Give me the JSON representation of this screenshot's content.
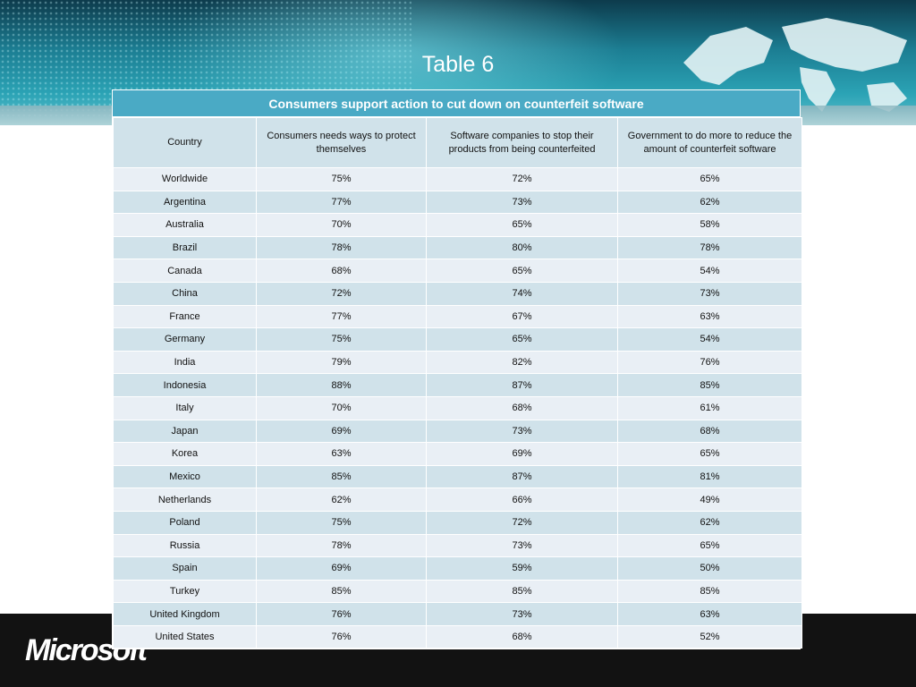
{
  "slide": {
    "title": "Table 6",
    "logo": "Microsoft"
  },
  "table": {
    "caption": "Consumers support action to cut down on counterfeit software",
    "headers": [
      "Country",
      "Consumers needs ways to protect themselves",
      "Software companies to stop their products from being counterfeited",
      "Government to do more to reduce the amount of counterfeit software"
    ],
    "rows": [
      [
        "Worldwide",
        "75%",
        "72%",
        "65%"
      ],
      [
        "Argentina",
        "77%",
        "73%",
        "62%"
      ],
      [
        "Australia",
        "70%",
        "65%",
        "58%"
      ],
      [
        "Brazil",
        "78%",
        "80%",
        "78%"
      ],
      [
        "Canada",
        "68%",
        "65%",
        "54%"
      ],
      [
        "China",
        "72%",
        "74%",
        "73%"
      ],
      [
        "France",
        "77%",
        "67%",
        "63%"
      ],
      [
        "Germany",
        "75%",
        "65%",
        "54%"
      ],
      [
        "India",
        "79%",
        "82%",
        "76%"
      ],
      [
        "Indonesia",
        "88%",
        "87%",
        "85%"
      ],
      [
        "Italy",
        "70%",
        "68%",
        "61%"
      ],
      [
        "Japan",
        "69%",
        "73%",
        "68%"
      ],
      [
        "Korea",
        "63%",
        "69%",
        "65%"
      ],
      [
        "Mexico",
        "85%",
        "87%",
        "81%"
      ],
      [
        "Netherlands",
        "62%",
        "66%",
        "49%"
      ],
      [
        "Poland",
        "75%",
        "72%",
        "62%"
      ],
      [
        "Russia",
        "78%",
        "73%",
        "65%"
      ],
      [
        "Spain",
        "69%",
        "59%",
        "50%"
      ],
      [
        "Turkey",
        "85%",
        "85%",
        "85%"
      ],
      [
        "United Kingdom",
        "76%",
        "73%",
        "63%"
      ],
      [
        "United States",
        "76%",
        "68%",
        "52%"
      ]
    ]
  },
  "colors": {
    "caption_bg": "#4aaac5",
    "row_light": "#e9eff5",
    "row_dark": "#d0e2ea",
    "footer_bg": "#121212"
  }
}
